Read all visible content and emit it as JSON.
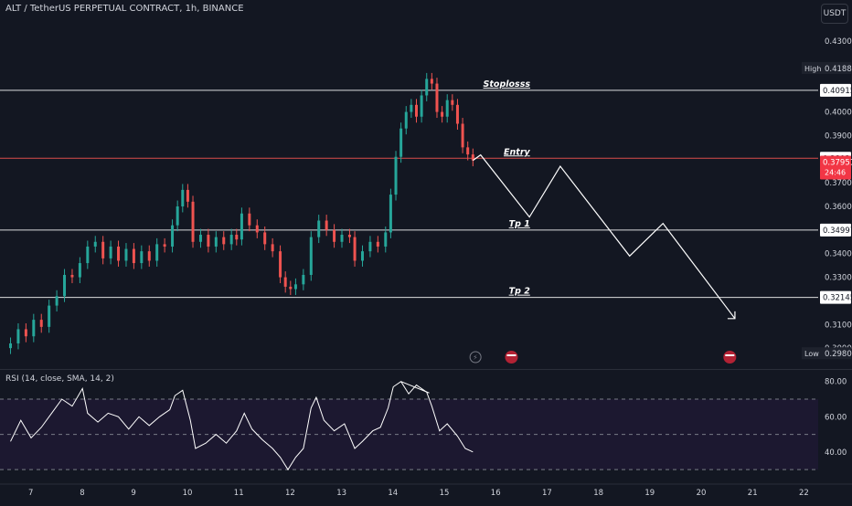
{
  "header": {
    "title": "ALT / TetherUS PERPETUAL CONTRACT, 1h, BINANCE",
    "currency_button": "USDT"
  },
  "chart_data": {
    "type": "candlestick",
    "symbol": "ALT / TetherUS PERPETUAL CONTRACT",
    "interval": "1h",
    "exchange": "BINANCE",
    "colors": {
      "up": "#26a69a",
      "down": "#ef5350",
      "line": "#ffffff",
      "entry_line": "#ef5350",
      "last_price_bg": "#f23645"
    },
    "y_ticks": [
      "0.43000",
      "0.40000",
      "0.39000",
      "0.37000",
      "0.36000",
      "0.34000",
      "0.33000",
      "0.31000",
      "0.30000"
    ],
    "x_ticks": [
      "7",
      "8",
      "9",
      "10",
      "11",
      "12",
      "13",
      "14",
      "15",
      "16",
      "17",
      "18",
      "19",
      "20",
      "21",
      "22"
    ],
    "ylim": [
      0.2958,
      0.4358
    ],
    "high": {
      "label": "High",
      "value": "0.41880"
    },
    "low": {
      "label": "Low",
      "value": "0.29803"
    },
    "levels": [
      {
        "name": "Stoplosss",
        "price": 0.40915,
        "price_label": "0.40915",
        "label_day": 15.8
      },
      {
        "name": "Entry",
        "price": 0.38039,
        "price_label": "0.38039",
        "label_day": 16.2
      },
      {
        "name": "Tp 1",
        "price": 0.34997,
        "price_label": "0.34997",
        "label_day": 16.3
      },
      {
        "name": "Tp 2",
        "price": 0.32145,
        "price_label": "0.32145",
        "label_day": 16.3
      }
    ],
    "last_price": {
      "value": "0.37951",
      "countdown": "24:46"
    },
    "closes": [
      [
        6.6,
        0.302
      ],
      [
        6.75,
        0.308
      ],
      [
        6.9,
        0.305
      ],
      [
        7.05,
        0.312
      ],
      [
        7.2,
        0.309
      ],
      [
        7.35,
        0.318
      ],
      [
        7.5,
        0.322
      ],
      [
        7.65,
        0.331
      ],
      [
        7.8,
        0.33
      ],
      [
        7.95,
        0.336
      ],
      [
        8.1,
        0.343
      ],
      [
        8.25,
        0.345
      ],
      [
        8.4,
        0.338
      ],
      [
        8.55,
        0.343
      ],
      [
        8.7,
        0.337
      ],
      [
        8.85,
        0.342
      ],
      [
        9.0,
        0.336
      ],
      [
        9.15,
        0.341
      ],
      [
        9.3,
        0.337
      ],
      [
        9.45,
        0.344
      ],
      [
        9.6,
        0.343
      ],
      [
        9.75,
        0.352
      ],
      [
        9.85,
        0.36
      ],
      [
        9.95,
        0.367
      ],
      [
        10.05,
        0.362
      ],
      [
        10.15,
        0.345
      ],
      [
        10.3,
        0.348
      ],
      [
        10.45,
        0.343
      ],
      [
        10.6,
        0.347
      ],
      [
        10.75,
        0.344
      ],
      [
        10.9,
        0.348
      ],
      [
        11.0,
        0.346
      ],
      [
        11.1,
        0.357
      ],
      [
        11.25,
        0.352
      ],
      [
        11.4,
        0.349
      ],
      [
        11.55,
        0.344
      ],
      [
        11.7,
        0.341
      ],
      [
        11.85,
        0.33
      ],
      [
        11.95,
        0.326
      ],
      [
        12.05,
        0.325
      ],
      [
        12.15,
        0.327
      ],
      [
        12.3,
        0.331
      ],
      [
        12.45,
        0.347
      ],
      [
        12.6,
        0.354
      ],
      [
        12.75,
        0.35
      ],
      [
        12.9,
        0.345
      ],
      [
        13.05,
        0.348
      ],
      [
        13.2,
        0.347
      ],
      [
        13.3,
        0.337
      ],
      [
        13.45,
        0.341
      ],
      [
        13.6,
        0.345
      ],
      [
        13.75,
        0.343
      ],
      [
        13.9,
        0.349
      ],
      [
        14.0,
        0.365
      ],
      [
        14.1,
        0.381
      ],
      [
        14.2,
        0.393
      ],
      [
        14.3,
        0.4
      ],
      [
        14.4,
        0.403
      ],
      [
        14.5,
        0.398
      ],
      [
        14.6,
        0.407
      ],
      [
        14.7,
        0.414
      ],
      [
        14.8,
        0.412
      ],
      [
        14.9,
        0.4
      ],
      [
        15.0,
        0.398
      ],
      [
        15.1,
        0.405
      ],
      [
        15.2,
        0.403
      ],
      [
        15.3,
        0.395
      ],
      [
        15.4,
        0.385
      ],
      [
        15.5,
        0.382
      ],
      [
        15.6,
        0.3795
      ]
    ],
    "projection": [
      [
        15.6,
        0.3795
      ],
      [
        15.75,
        0.3818
      ],
      [
        16.7,
        0.3555
      ],
      [
        17.3,
        0.377
      ],
      [
        18.65,
        0.339
      ],
      [
        19.3,
        0.3528
      ],
      [
        20.7,
        0.3125
      ]
    ],
    "rsi": {
      "title": "RSI (14, close, SMA, 14, 2)",
      "y_ticks": [
        "80.00",
        "60.00",
        "40.00"
      ],
      "ylim": [
        28,
        84
      ],
      "band_upper": 70,
      "band_mid": 50,
      "band_lower": 30,
      "points": [
        [
          6.6,
          46
        ],
        [
          6.8,
          58
        ],
        [
          7.0,
          48
        ],
        [
          7.2,
          54
        ],
        [
          7.4,
          62
        ],
        [
          7.6,
          70
        ],
        [
          7.8,
          66
        ],
        [
          8.0,
          76
        ],
        [
          8.1,
          62
        ],
        [
          8.3,
          57
        ],
        [
          8.5,
          62
        ],
        [
          8.7,
          60
        ],
        [
          8.9,
          53
        ],
        [
          9.1,
          60
        ],
        [
          9.3,
          55
        ],
        [
          9.5,
          60
        ],
        [
          9.7,
          64
        ],
        [
          9.8,
          72
        ],
        [
          9.95,
          75
        ],
        [
          10.1,
          58
        ],
        [
          10.2,
          42
        ],
        [
          10.4,
          45
        ],
        [
          10.6,
          50
        ],
        [
          10.8,
          45
        ],
        [
          11.0,
          52
        ],
        [
          11.15,
          62
        ],
        [
          11.3,
          53
        ],
        [
          11.5,
          47
        ],
        [
          11.7,
          42
        ],
        [
          11.85,
          37
        ],
        [
          12.0,
          30
        ],
        [
          12.15,
          37
        ],
        [
          12.3,
          42
        ],
        [
          12.45,
          65
        ],
        [
          12.55,
          71
        ],
        [
          12.7,
          58
        ],
        [
          12.9,
          52
        ],
        [
          13.1,
          56
        ],
        [
          13.3,
          42
        ],
        [
          13.45,
          46
        ],
        [
          13.65,
          52
        ],
        [
          13.8,
          54
        ],
        [
          13.95,
          65
        ],
        [
          14.05,
          77
        ],
        [
          14.2,
          80
        ],
        [
          14.35,
          73
        ],
        [
          14.5,
          78
        ],
        [
          14.7,
          74
        ],
        [
          14.8,
          66
        ],
        [
          14.95,
          52
        ],
        [
          15.1,
          56
        ],
        [
          15.3,
          49
        ],
        [
          15.45,
          42
        ],
        [
          15.6,
          40
        ]
      ],
      "divergence": [
        [
          14.2,
          80
        ],
        [
          14.75,
          73.5
        ]
      ]
    }
  }
}
